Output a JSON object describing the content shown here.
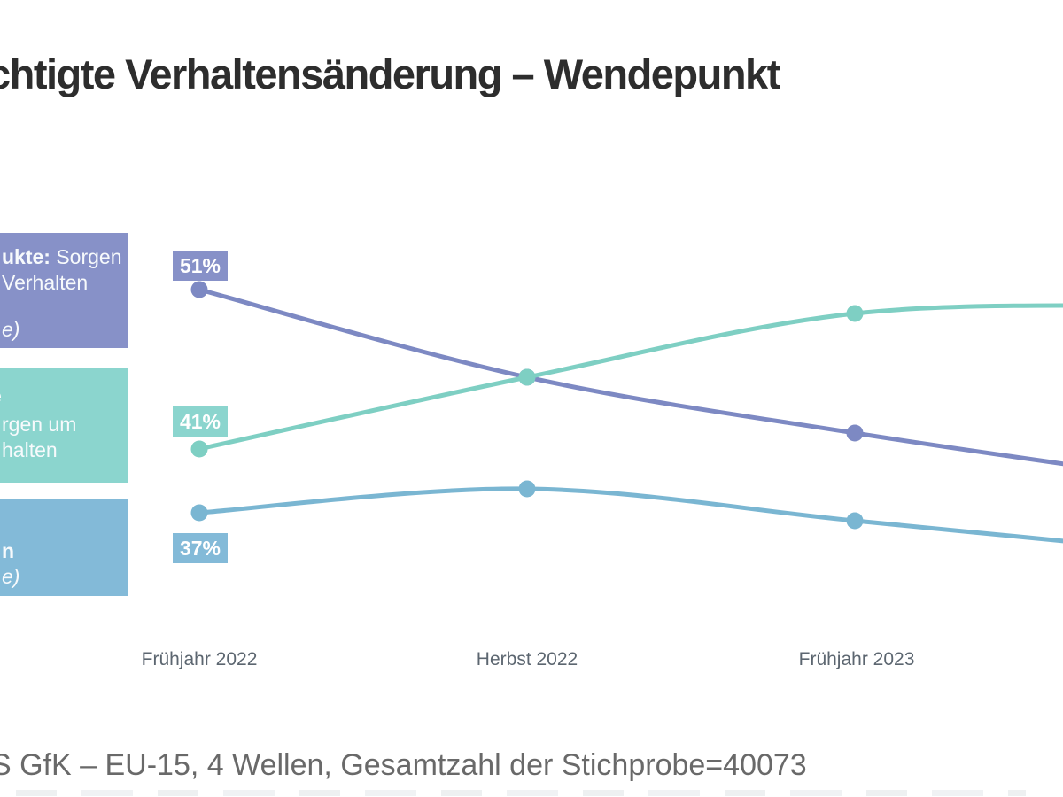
{
  "page": {
    "title": "chtigte Verhaltensänderung – Wendepunkt",
    "source_note": "S GfK – EU-15, 4 Wellen, Gesamtzahl der Stichprobe=40073"
  },
  "colors": {
    "purple_line": "#7d89c3",
    "purple_box": "#8791c8",
    "teal_line": "#7ecfc3",
    "teal_box": "#8bd5ce",
    "blue_line": "#7ab6d2",
    "blue_box": "#83bad8",
    "title_text": "#2d2d2d",
    "axis_text": "#5c6670",
    "source_text": "#696969",
    "point_label_text": "#ffffff"
  },
  "legend": [
    {
      "color_key": "purple_box",
      "lines": [
        {
          "segments": [
            {
              "text": "ukte:",
              "bold": true
            },
            {
              "text": " Sorgen"
            }
          ]
        },
        {
          "segments": [
            {
              "text": "Verhalten"
            }
          ]
        },
        {
          "segments": [
            {
              "text": "e)",
              "italic": true
            }
          ]
        }
      ]
    },
    {
      "color_key": "teal_box",
      "lines": [
        {
          "segments": [
            {
              "text": "e",
              "bold": true,
              "clipped": true
            }
          ]
        },
        {
          "segments": [
            {
              "text": "rgen um"
            }
          ]
        },
        {
          "segments": [
            {
              "text": "halten"
            }
          ]
        }
      ]
    },
    {
      "color_key": "blue_box",
      "lines": [
        {
          "segments": [
            {
              "text": "n",
              "bold": true
            }
          ]
        },
        {
          "segments": [
            {
              "text": "e)",
              "italic": true
            }
          ]
        }
      ]
    }
  ],
  "chart_data": {
    "type": "line",
    "x_categories_visible": [
      "Frühjahr 2022",
      "Herbst 2022",
      "Frühjahr 2023"
    ],
    "x_waves_total": 4,
    "y_unit": "%",
    "grid": false,
    "legend_position": "left",
    "series": [
      {
        "legend_fragment": "ukte: Sorgen / Verhalten / e)",
        "color_key": "purple",
        "values_pct": [
          51,
          45.5,
          42,
          39
        ],
        "first_point_label": "51%",
        "label_side": "above"
      },
      {
        "legend_fragment": "e / rgen um / halten",
        "color_key": "teal",
        "values_pct": [
          41,
          45.5,
          49.5,
          50
        ],
        "first_point_label": "41%",
        "label_side": "above"
      },
      {
        "legend_fragment": "n / e)",
        "color_key": "blue",
        "values_pct": [
          37,
          38.5,
          36.5,
          34.5
        ],
        "first_point_label": "37%",
        "label_side": "below"
      }
    ]
  }
}
